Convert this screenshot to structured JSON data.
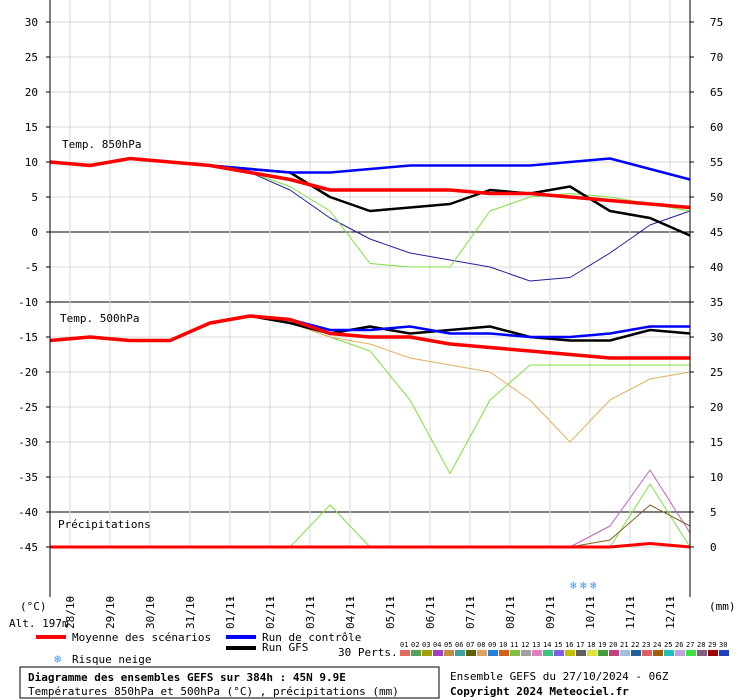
{
  "chart_data": {
    "type": "line",
    "title": "Diagramme des ensembles GEFS sur 384h : 45N 9.9E",
    "subtitle": "Températures 850hPa et 500hPa (°C) , précipitations (mm)",
    "left_axis_unit": "(°C)",
    "right_axis_unit": "(mm)",
    "altitude": "Alt. 197m",
    "left_ticks": [
      30,
      25,
      20,
      15,
      10,
      5,
      0,
      -5,
      -10,
      -15,
      -20,
      -25,
      -30,
      -35,
      -40,
      -45
    ],
    "right_ticks": [
      75,
      70,
      65,
      60,
      55,
      50,
      45,
      40,
      35,
      30,
      25,
      20,
      15,
      10,
      5,
      0
    ],
    "ylim": [
      -45,
      30
    ],
    "dates": [
      "28/10",
      "29/10",
      "30/10",
      "31/10",
      "01/11",
      "02/11",
      "03/11",
      "04/11",
      "05/11",
      "06/11",
      "07/11",
      "08/11",
      "09/11",
      "10/11",
      "11/11",
      "12/11"
    ],
    "x_range_days": [
      0,
      16
    ],
    "panels": {
      "t850_label": "Temp. 850hPa",
      "t500_label": "Temp. 500hPa",
      "precip_label": "Précipitations"
    },
    "t850": {
      "x": [
        0,
        1,
        2,
        3,
        4,
        5,
        6,
        7,
        8,
        9,
        10,
        11,
        12,
        13,
        14,
        15,
        16
      ],
      "mean": [
        10,
        9.5,
        10.5,
        10,
        9.5,
        8.5,
        7.5,
        6,
        6,
        6,
        6,
        5.5,
        5.5,
        5,
        4.5,
        4,
        3.5
      ],
      "control": [
        10,
        9.5,
        10.5,
        10,
        9.5,
        9,
        8.5,
        8.5,
        9,
        9.5,
        9.5,
        9.5,
        9.5,
        10,
        10.5,
        9,
        7.5
      ],
      "gfs": [
        10,
        9.5,
        10.5,
        10,
        9.5,
        9,
        8.5,
        5,
        3,
        3.5,
        4,
        6,
        5.5,
        6.5,
        3,
        2,
        -0.5
      ],
      "low_member": [
        10,
        9.5,
        10.5,
        10,
        9.5,
        8.5,
        6,
        2,
        -1,
        -3,
        -4,
        -5,
        -7,
        -6.5,
        -3,
        1,
        3
      ],
      "dip_member": [
        10,
        9.5,
        10.5,
        10,
        9.5,
        8.5,
        6.5,
        3,
        -4.5,
        -5,
        -5,
        3,
        5,
        5.5,
        5,
        4,
        3
      ]
    },
    "t500": {
      "x": [
        0,
        1,
        2,
        3,
        4,
        5,
        6,
        7,
        8,
        9,
        10,
        11,
        12,
        13,
        14,
        15,
        16
      ],
      "mean": [
        -15.5,
        -15,
        -15.5,
        -15.5,
        -13,
        -12,
        -12.5,
        -14.5,
        -15,
        -15,
        -16,
        -16.5,
        -17,
        -17.5,
        -18,
        -18,
        -18
      ],
      "control": [
        -15.5,
        -15,
        -15.5,
        -15.5,
        -13,
        -12,
        -12.5,
        -14,
        -14,
        -13.5,
        -14.5,
        -14.5,
        -15,
        -15,
        -14.5,
        -13.5,
        -13.5
      ],
      "gfs": [
        -15.5,
        -15,
        -15.5,
        -15.5,
        -13,
        -12,
        -13,
        -14.5,
        -13.5,
        -14.5,
        -14,
        -13.5,
        -15,
        -15.5,
        -15.5,
        -14,
        -14.5
      ],
      "low_member": [
        -15.5,
        -15,
        -15.5,
        -15.5,
        -13,
        -12,
        -13,
        -15,
        -17,
        -24,
        -34.5,
        -24,
        -19,
        -19,
        -19,
        -19,
        -19
      ],
      "dry_member": [
        -15.5,
        -15,
        -15.5,
        -15.5,
        -13,
        -12,
        -13,
        -15,
        -16,
        -18,
        -19,
        -20,
        -24,
        -30,
        -24,
        -21,
        -20
      ]
    },
    "precip": {
      "x": [
        0,
        1,
        2,
        3,
        4,
        5,
        6,
        7,
        8,
        9,
        10,
        11,
        12,
        13,
        14,
        15,
        16
      ],
      "mean": [
        0,
        0,
        0,
        0,
        0,
        0,
        0,
        0,
        0,
        0,
        0,
        0,
        0,
        0,
        0,
        0.5,
        0
      ],
      "spike_a": [
        0,
        0,
        0,
        0,
        0,
        0,
        0,
        6,
        0,
        0,
        0,
        0,
        0,
        0,
        0,
        9,
        0
      ],
      "spike_b": [
        0,
        0,
        0,
        0,
        0,
        0,
        0,
        0,
        0,
        0,
        0,
        0,
        0,
        0,
        3,
        11,
        2
      ],
      "spike_c": [
        0,
        0,
        0,
        0,
        0,
        0,
        0,
        0,
        0,
        0,
        0,
        0,
        0,
        0,
        1,
        6,
        3
      ]
    }
  },
  "legend": {
    "mean_label": "Moyenne des scénarios",
    "control_label": "Run de contrôle",
    "gfs_label": "Run GFS",
    "snow_label": "Risque neige",
    "perts_label": "30 Perts.",
    "pert_numbers": [
      "01",
      "02",
      "03",
      "04",
      "05",
      "06",
      "07",
      "08",
      "09",
      "10",
      "11",
      "12",
      "13",
      "14",
      "15",
      "16",
      "17",
      "18",
      "19",
      "20",
      "21",
      "22",
      "23",
      "24",
      "25",
      "26",
      "27",
      "28",
      "29",
      "30"
    ],
    "pert_colors": [
      "#e46b5a",
      "#5aa05a",
      "#a0a000",
      "#a040c0",
      "#c09040",
      "#40a0a0",
      "#606000",
      "#e0a060",
      "#2080e0",
      "#d06020",
      "#80c040",
      "#a0a0a0",
      "#e080c0",
      "#40c080",
      "#8060e0",
      "#c0c000",
      "#606060",
      "#e0e040",
      "#40a040",
      "#c04080",
      "#a0c0e0",
      "#2060a0",
      "#e06060",
      "#a06000",
      "#20c0c0",
      "#c0a0e0",
      "#40e040",
      "#806080",
      "#a00000",
      "#2040c0"
    ],
    "colors": {
      "mean": "#ff0000",
      "control": "#0000ff",
      "gfs": "#000000"
    }
  },
  "footer": {
    "ensemble": "Ensemble GEFS du 27/10/2024 - 06Z",
    "copyright": "Copyright 2024 Meteociel.fr"
  }
}
